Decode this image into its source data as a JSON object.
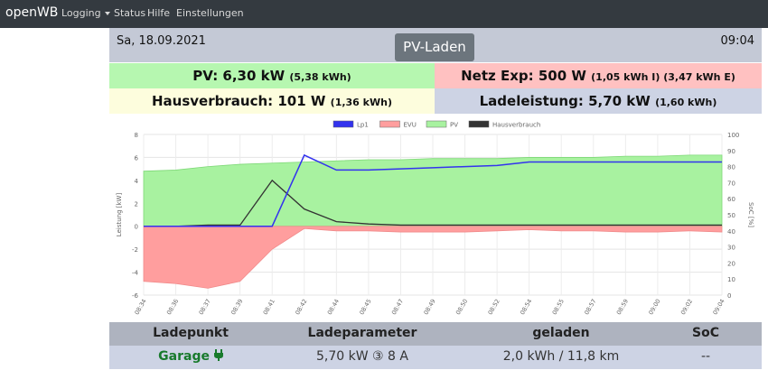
{
  "nav": {
    "brand": "openWB",
    "items": [
      {
        "label": "Logging",
        "dropdown": true
      },
      {
        "label": "Status"
      },
      {
        "label": "Hilfe"
      },
      {
        "label": "Einstellungen"
      }
    ]
  },
  "header": {
    "date": "Sa, 18.09.2021",
    "time": "09:04",
    "mode": "PV-Laden"
  },
  "summary": {
    "pv_main": "PV: 6,30 kW",
    "pv_sub": "(5,38 kWh)",
    "netz_main": "Netz Exp: 500 W",
    "netz_sub": "(1,05 kWh I) (3,47 kWh E)",
    "haus_main": "Hausverbrauch: 101 W",
    "haus_sub": "(1,36 kWh)",
    "lade_main": "Ladeleistung: 5,70 kW",
    "lade_sub": "(1,60 kWh)"
  },
  "colors": {
    "lp1": "#3333ee",
    "evu": "#ff9e9e",
    "pv": "#a8f2a0",
    "haus": "#333333"
  },
  "chart_data": {
    "type": "line",
    "legend_position": "top",
    "x": [
      "08:34",
      "08:36",
      "08:37",
      "08:39",
      "08:41",
      "08:42",
      "08:44",
      "08:45",
      "08:47",
      "08:49",
      "08:50",
      "08:52",
      "08:54",
      "08:55",
      "08:57",
      "08:59",
      "09:00",
      "09:02",
      "09:04"
    ],
    "y_left": {
      "label": "Leistung [kW]",
      "min": -6,
      "max": 8,
      "ticks": [
        -6,
        -4,
        -2,
        0,
        2,
        4,
        6,
        8
      ]
    },
    "y_right": {
      "label": "SoC [%]",
      "min": 0,
      "max": 100,
      "ticks": [
        0,
        10,
        20,
        30,
        40,
        50,
        60,
        70,
        80,
        90,
        100
      ]
    },
    "series": [
      {
        "name": "Lp1",
        "values": [
          0,
          0,
          0,
          0,
          0,
          6.2,
          4.9,
          4.9,
          5.0,
          5.1,
          5.2,
          5.3,
          5.6,
          5.6,
          5.6,
          5.6,
          5.6,
          5.6,
          5.6
        ]
      },
      {
        "name": "EVU",
        "values": [
          -4.8,
          -5.0,
          -5.4,
          -4.8,
          -2.0,
          -0.2,
          -0.4,
          -0.4,
          -0.5,
          -0.5,
          -0.5,
          -0.4,
          -0.3,
          -0.4,
          -0.4,
          -0.5,
          -0.5,
          -0.4,
          -0.5
        ]
      },
      {
        "name": "PV",
        "values": [
          4.8,
          4.9,
          5.2,
          5.4,
          5.5,
          5.6,
          5.7,
          5.8,
          5.8,
          5.9,
          5.9,
          5.9,
          6.0,
          6.0,
          6.0,
          6.1,
          6.1,
          6.2,
          6.2
        ]
      },
      {
        "name": "Hausverbrauch",
        "values": [
          0,
          0,
          0.1,
          0.1,
          4.0,
          1.5,
          0.4,
          0.2,
          0.1,
          0.1,
          0.1,
          0.1,
          0.1,
          0.1,
          0.1,
          0.1,
          0.1,
          0.1,
          0.1
        ]
      }
    ]
  },
  "table": {
    "headers": [
      "Ladepunkt",
      "Ladeparameter",
      "geladen",
      "SoC"
    ],
    "row": {
      "ladepunkt": "Garage",
      "parameter": "5,70 kW ③ 8 A",
      "geladen": "2,0 kWh / 11,8 km",
      "soc": "--"
    }
  }
}
